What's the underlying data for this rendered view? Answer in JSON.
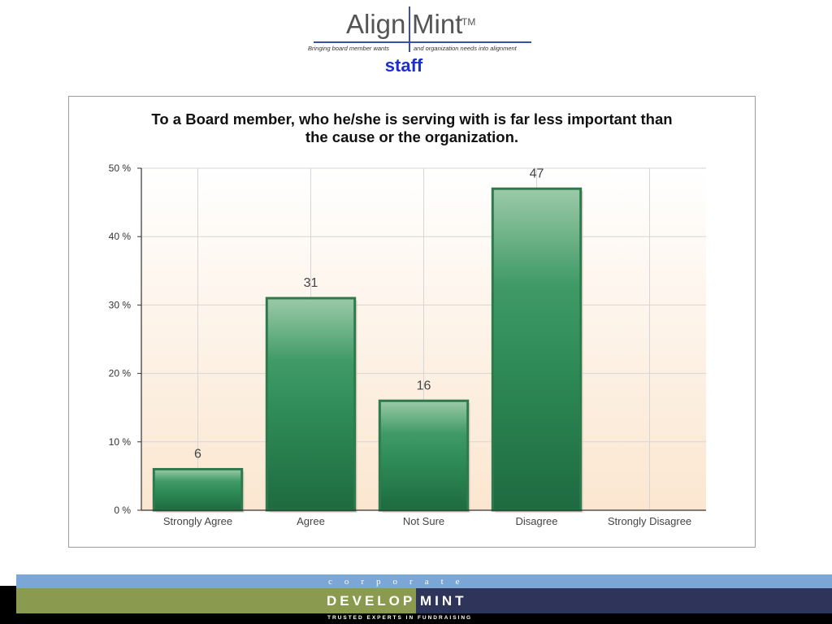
{
  "logo": {
    "word_align": "Align",
    "word_mint": "Mint",
    "tm": "TM",
    "tagline_left": "Bringing board member wants",
    "tagline_right": "and organization needs into alignment"
  },
  "subtitle": "staff",
  "chart_data": {
    "type": "bar",
    "title": "To a Board member, who he/she is serving with is far less important than the cause or the organization.",
    "title_lines": [
      "To a Board member, who he/she is serving with is far less important than",
      "the cause or the organization."
    ],
    "categories": [
      "Strongly Agree",
      "Agree",
      "Not Sure",
      "Disagree",
      "Strongly Disagree"
    ],
    "values": [
      6,
      31,
      16,
      47,
      0
    ],
    "value_labels": [
      "6",
      "31",
      "16",
      "47",
      ""
    ],
    "y_ticks": [
      0,
      10,
      20,
      30,
      40,
      50
    ],
    "y_tick_labels": [
      "0 %",
      "10 %",
      "20 %",
      "30 %",
      "40 %",
      "50 %"
    ],
    "ylim": [
      0,
      50
    ],
    "grid": true,
    "xlabel": "",
    "ylabel": "",
    "bar_color": "#2e8b57",
    "background_gradient": [
      "#ffffff",
      "#fbe6d0"
    ]
  },
  "footer": {
    "corporate": "corporate",
    "develop": "DEVELOP",
    "mint": "MINT",
    "trusted": "TRUSTED EXPERTS IN FUNDRAISING"
  }
}
